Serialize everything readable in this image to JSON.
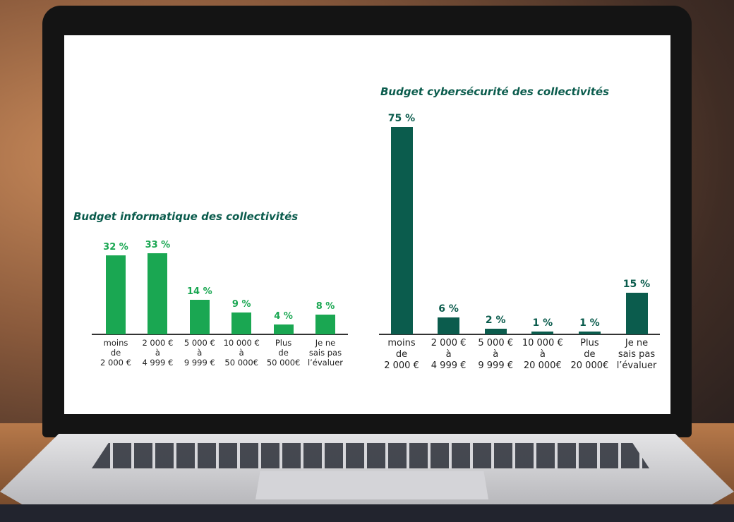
{
  "chart_data": [
    {
      "type": "bar",
      "title": "Budget informatique des collectivités",
      "categories": [
        "moins\nde\n2 000 €",
        "2 000 €\nà\n4 999 €",
        "5 000 €\nà\n9 999 €",
        "10 000 €\nà\n50 000€",
        "Plus\nde\n50 000€",
        "Je ne\nsais pas\nl’évaluer"
      ],
      "values": [
        32,
        33,
        14,
        9,
        4,
        8
      ],
      "value_labels": [
        "32 %",
        "33 %",
        "14 %",
        "9 %",
        "4 %",
        "8 %"
      ],
      "color": "#1aa752"
    },
    {
      "type": "bar",
      "title": "Budget cybersécurité des collectivités",
      "categories": [
        "moins\nde\n2 000 €",
        "2 000 €\nà\n4 999 €",
        "5 000 €\nà\n9 999 €",
        "10 000 €\nà\n20 000€",
        "Plus\nde\n20 000€",
        "Je ne\nsais pas\nl’évaluer"
      ],
      "values": [
        75,
        6,
        2,
        1,
        1,
        15
      ],
      "value_labels": [
        "75 %",
        "6 %",
        "2 %",
        "1 %",
        "1 %",
        "15 %"
      ],
      "color": "#0b5c4d"
    }
  ]
}
